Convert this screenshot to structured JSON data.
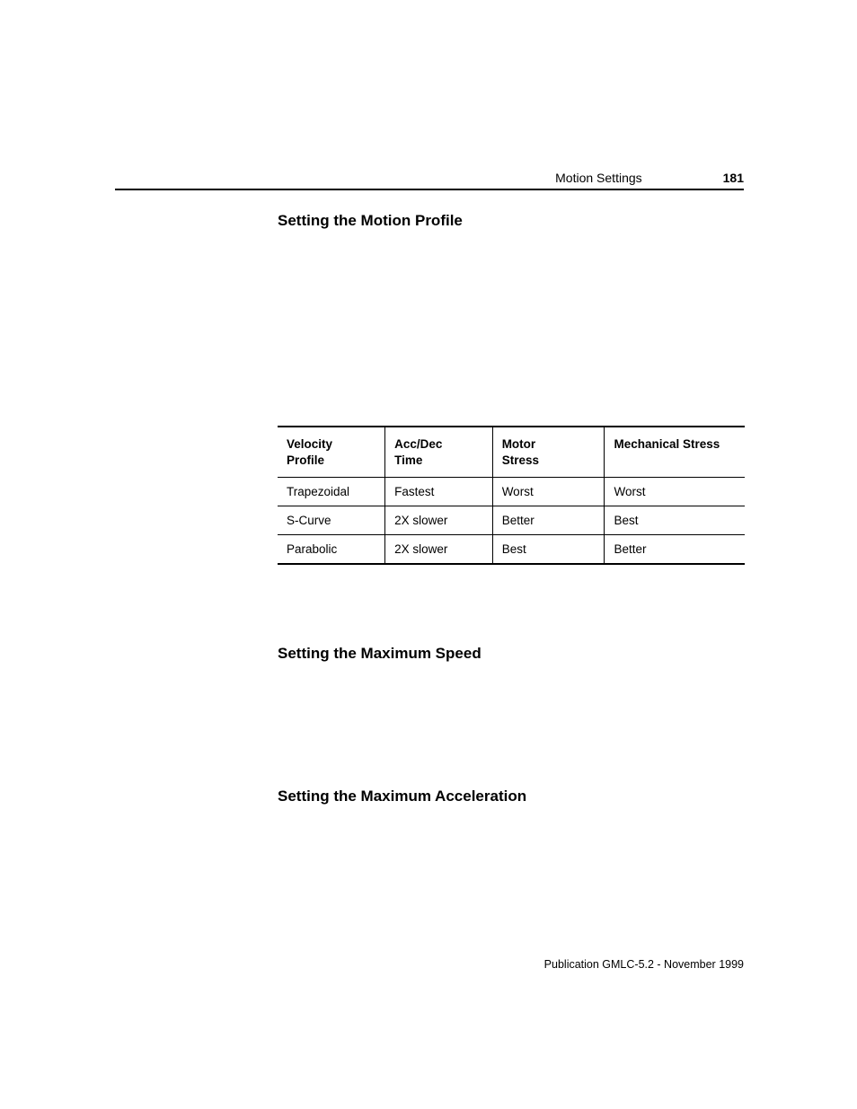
{
  "header": {
    "section": "Motion Settings",
    "page_number": "181"
  },
  "headings": {
    "h1": "Setting the Motion Profile",
    "h2": "Setting the Maximum Speed",
    "h3": "Setting the Maximum Acceleration"
  },
  "table": {
    "columns": {
      "c1_l1": "Velocity",
      "c1_l2": "Profile",
      "c2_l1": "Acc/Dec",
      "c2_l2": "Time",
      "c3_l1": "Motor",
      "c3_l2": "Stress",
      "c4": "Mechanical Stress"
    },
    "rows": [
      {
        "c1": "Trapezoidal",
        "c2": "Fastest",
        "c3": "Worst",
        "c4": "Worst"
      },
      {
        "c1": "S-Curve",
        "c2": "2X slower",
        "c3": "Better",
        "c4": "Best"
      },
      {
        "c1": "Parabolic",
        "c2": "2X slower",
        "c3": "Best",
        "c4": "Better"
      }
    ]
  },
  "footer": {
    "publication": "Publication GMLC-5.2 - November 1999"
  }
}
